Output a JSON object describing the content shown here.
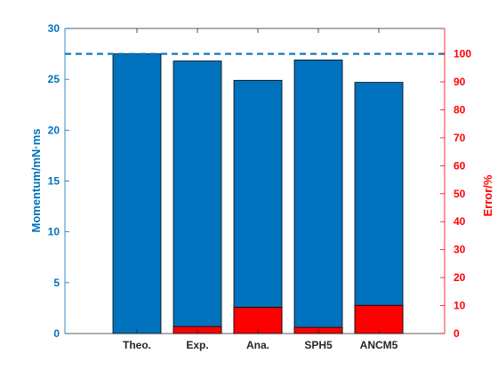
{
  "chart_data": {
    "type": "bar",
    "categories": [
      "Theo.",
      "Exp.",
      "Ana.",
      "SPH5",
      "ANCM5"
    ],
    "series": [
      {
        "values": [
          27.5,
          26.8,
          24.9,
          26.9,
          24.7
        ],
        "axis": "left",
        "color": "#0072BD"
      },
      {
        "values": [
          0,
          2.5,
          9.4,
          2.2,
          10.1
        ],
        "axis": "right",
        "color": "#FF0000"
      }
    ],
    "reference_line": {
      "value": 27.5,
      "axis": "left",
      "style": "dashed",
      "color": "#0072BD"
    },
    "xlabel": "",
    "ylabel_left": "Momentum/mN·ms",
    "ylabel_right": "Error/%",
    "ylim_left": [
      0,
      30
    ],
    "ylim_right": [
      0,
      109.09
    ],
    "yticks_left": [
      0,
      5,
      10,
      15,
      20,
      25,
      30
    ],
    "yticks_right": [
      0,
      10,
      20,
      30,
      40,
      50,
      60,
      70,
      80,
      90,
      100
    ],
    "left_axis_color": "#0072BD",
    "right_axis_color": "#FF0000",
    "grid": false,
    "legend": "none"
  }
}
